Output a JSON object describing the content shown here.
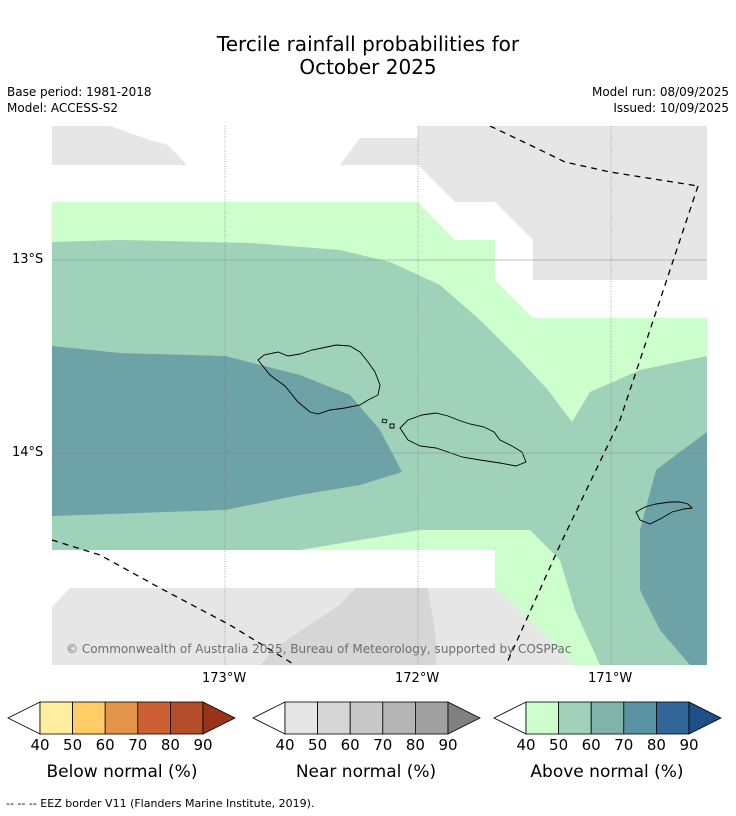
{
  "title": {
    "line1": "Tercile rainfall probabilities for",
    "line2": "October 2025"
  },
  "info": {
    "base_period": "Base period: 1981-2018",
    "model": "Model: ACCESS-S2",
    "model_run": "Model run: 08/09/2025",
    "issued": "Issued: 10/09/2025"
  },
  "map": {
    "lat_labels": [
      "13°S",
      "14°S"
    ],
    "lon_labels": [
      "173°W",
      "172°W",
      "171°W"
    ],
    "copyright": "© Commonwealth of Australia 2025, Bureau of Meteorology, supported by COSPPac",
    "colors": {
      "near_40": "#e6e6e6",
      "near_50": "#d6d6d6",
      "above_40": "#ccffcc",
      "above_50": "#a0d2ba",
      "above_60": "#6da2a6",
      "eez_line": "#000000",
      "gridline": "#888888"
    }
  },
  "colorbars": [
    {
      "title": "Below normal (%)",
      "ticks": [
        "40",
        "50",
        "60",
        "70",
        "80",
        "90"
      ],
      "colors": [
        "#ffeea0",
        "#ffcc66",
        "#e29448",
        "#cc6033",
        "#b34d2a",
        "#99331a"
      ]
    },
    {
      "title": "Near normal (%)",
      "ticks": [
        "40",
        "50",
        "60",
        "70",
        "80",
        "90"
      ],
      "colors": [
        "#e6e6e6",
        "#d6d6d6",
        "#c8c8c8",
        "#b4b4b4",
        "#a0a0a0",
        "#808080"
      ]
    },
    {
      "title": "Above normal (%)",
      "ticks": [
        "40",
        "50",
        "60",
        "70",
        "80",
        "90"
      ],
      "colors": [
        "#ccffcc",
        "#a0d2ba",
        "#80b4aa",
        "#5a93a4",
        "#336699",
        "#1f4f88"
      ]
    }
  ],
  "footer": "--  --  -- EEZ border V11 (Flanders Marine Institute, 2019)."
}
